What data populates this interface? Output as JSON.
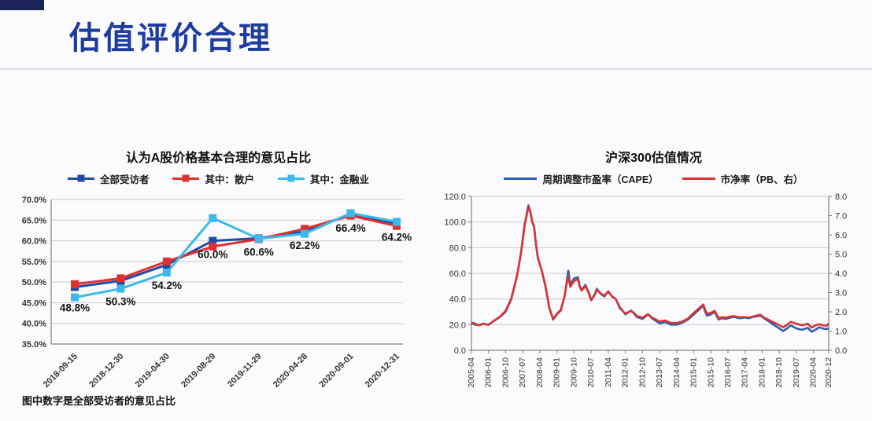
{
  "slide": {
    "title": "估值评价合理",
    "footnote": "图中数字是全部受访者的意见占比",
    "accent_color": "#1e3ca0",
    "corner_block_color": "#1b2559"
  },
  "chart_data": [
    {
      "type": "line",
      "title": "认为A股价格基本合理的意见占比",
      "legend_position": "top",
      "legend_marker": "square",
      "grid": true,
      "categories": [
        "2018-09-15",
        "2018-12-30",
        "2019-04-30",
        "2019-08-29",
        "2019-11-29",
        "2020-04-28",
        "2020-09-01",
        "2020-12-31"
      ],
      "series": [
        {
          "name": "全部受访者",
          "color": "#1f4aa8",
          "values": [
            48.8,
            50.3,
            54.2,
            60.0,
            60.6,
            62.2,
            66.4,
            64.2
          ]
        },
        {
          "name": "其中：散户",
          "color": "#e02f2f",
          "values": [
            49.5,
            50.9,
            55.0,
            58.6,
            60.4,
            62.9,
            66.1,
            63.6
          ]
        },
        {
          "name": "其中：金融业",
          "color": "#3bb9ea",
          "values": [
            46.3,
            48.4,
            52.3,
            65.5,
            60.5,
            61.7,
            66.7,
            64.6
          ]
        }
      ],
      "data_labels": [
        "48.8%",
        "50.3%",
        "54.2%",
        "60.0%",
        "60.6%",
        "62.2%",
        "66.4%",
        "64.2%"
      ],
      "ylim": [
        35,
        70
      ],
      "ytick_step": 5,
      "y_tick_labels": [
        "35.0%",
        "40.0%",
        "45.0%",
        "50.0%",
        "55.0%",
        "60.0%",
        "65.0%",
        "70.0%"
      ]
    },
    {
      "type": "line",
      "title": "沪深300估值情况",
      "legend_position": "top",
      "legend_marker": "line",
      "grid": true,
      "xlim": [
        0,
        188
      ],
      "x_tick_positions": [
        0,
        9,
        18,
        27,
        36,
        45,
        54,
        63,
        72,
        81,
        90,
        99,
        108,
        117,
        126,
        135,
        144,
        153,
        162,
        171,
        180,
        188
      ],
      "x_tick_labels": [
        "2005-04",
        "2006-01",
        "2006-10",
        "2007-07",
        "2008-04",
        "2009-01",
        "2009-10",
        "2010-07",
        "2011-04",
        "2012-01",
        "2012-10",
        "2013-07",
        "2014-04",
        "2015-01",
        "2015-10",
        "2016-07",
        "2017-04",
        "2018-01",
        "2018-10",
        "2019-07",
        "2020-04",
        "2020-12"
      ],
      "left_ylim": [
        0,
        120
      ],
      "left_step": 20,
      "left_tick_labels": [
        "0.0",
        "20.0",
        "40.0",
        "60.0",
        "80.0",
        "100.0",
        "120.0"
      ],
      "right_ylim": [
        0,
        8
      ],
      "right_step": 1,
      "right_tick_labels": [
        "0.0",
        "1.0",
        "2.0",
        "3.0",
        "4.0",
        "5.0",
        "6.0",
        "7.0",
        "8.0"
      ],
      "series": [
        {
          "name": "周期调整市盈率（CAPE）",
          "color": "#2e5fb0",
          "axis": "left",
          "points": [
            [
              0,
              21
            ],
            [
              2,
              20
            ],
            [
              4,
              19.5
            ],
            [
              6,
              20.5
            ],
            [
              9,
              20
            ],
            [
              12,
              23
            ],
            [
              15,
              26
            ],
            [
              18,
              30
            ],
            [
              21,
              40
            ],
            [
              24,
              58
            ],
            [
              26,
              75
            ],
            [
              28,
              98
            ],
            [
              30,
              113
            ],
            [
              31,
              108
            ],
            [
              32,
              100
            ],
            [
              33,
              96
            ],
            [
              34,
              82
            ],
            [
              35,
              72
            ],
            [
              37,
              62
            ],
            [
              39,
              50
            ],
            [
              41,
              33
            ],
            [
              43,
              24
            ],
            [
              45,
              28
            ],
            [
              47,
              31
            ],
            [
              49,
              42
            ],
            [
              50,
              52
            ],
            [
              51,
              62
            ],
            [
              52,
              51
            ],
            [
              54,
              56
            ],
            [
              56,
              57
            ],
            [
              57,
              50
            ],
            [
              58,
              47
            ],
            [
              60,
              51
            ],
            [
              62,
              44
            ],
            [
              63,
              39
            ],
            [
              65,
              44
            ],
            [
              66,
              48
            ],
            [
              68,
              44
            ],
            [
              70,
              42
            ],
            [
              72,
              46
            ],
            [
              74,
              42
            ],
            [
              76,
              40
            ],
            [
              78,
              33
            ],
            [
              80,
              30
            ],
            [
              81,
              28
            ],
            [
              83,
              30
            ],
            [
              84,
              31
            ],
            [
              86,
              28
            ],
            [
              87,
              26
            ],
            [
              90,
              24.5
            ],
            [
              93,
              28
            ],
            [
              95,
              25
            ],
            [
              96,
              24
            ],
            [
              99,
              21
            ],
            [
              102,
              22
            ],
            [
              105,
              20
            ],
            [
              108,
              20
            ],
            [
              111,
              21.5
            ],
            [
              114,
              24
            ],
            [
              117,
              28
            ],
            [
              120,
              32
            ],
            [
              122,
              35
            ],
            [
              123,
              30
            ],
            [
              124,
              27
            ],
            [
              126,
              28
            ],
            [
              128,
              30
            ],
            [
              130,
              24
            ],
            [
              132,
              25
            ],
            [
              134,
              24.5
            ],
            [
              136,
              25.5
            ],
            [
              138,
              26
            ],
            [
              141,
              25
            ],
            [
              144,
              25.5
            ],
            [
              146,
              25
            ],
            [
              148,
              26
            ],
            [
              152,
              27
            ],
            [
              154,
              25
            ],
            [
              156,
              23
            ],
            [
              158,
              21
            ],
            [
              160,
              19
            ],
            [
              162,
              17
            ],
            [
              164,
              15
            ],
            [
              166,
              17
            ],
            [
              168,
              19.5
            ],
            [
              171,
              17
            ],
            [
              174,
              16
            ],
            [
              177,
              17.5
            ],
            [
              179,
              14.5
            ],
            [
              181,
              16
            ],
            [
              183,
              18
            ],
            [
              185,
              17
            ],
            [
              187,
              16.5
            ],
            [
              188,
              17.5
            ]
          ]
        },
        {
          "name": "市净率（PB、右）",
          "color": "#d93432",
          "axis": "right",
          "points": [
            [
              0,
              1.45
            ],
            [
              2,
              1.38
            ],
            [
              4,
              1.3
            ],
            [
              6,
              1.38
            ],
            [
              9,
              1.32
            ],
            [
              12,
              1.55
            ],
            [
              15,
              1.75
            ],
            [
              18,
              2.05
            ],
            [
              21,
              2.7
            ],
            [
              24,
              3.9
            ],
            [
              26,
              5.0
            ],
            [
              28,
              6.5
            ],
            [
              30,
              7.45
            ],
            [
              31,
              7.2
            ],
            [
              32,
              6.7
            ],
            [
              33,
              6.4
            ],
            [
              34,
              5.5
            ],
            [
              35,
              4.8
            ],
            [
              37,
              4.15
            ],
            [
              39,
              3.3
            ],
            [
              41,
              2.2
            ],
            [
              43,
              1.62
            ],
            [
              45,
              1.9
            ],
            [
              47,
              2.1
            ],
            [
              49,
              2.8
            ],
            [
              50,
              3.4
            ],
            [
              51,
              3.85
            ],
            [
              52,
              3.3
            ],
            [
              54,
              3.6
            ],
            [
              56,
              3.7
            ],
            [
              57,
              3.3
            ],
            [
              58,
              3.1
            ],
            [
              60,
              3.35
            ],
            [
              62,
              2.9
            ],
            [
              63,
              2.6
            ],
            [
              65,
              2.9
            ],
            [
              66,
              3.15
            ],
            [
              68,
              2.95
            ],
            [
              70,
              2.85
            ],
            [
              72,
              3.05
            ],
            [
              74,
              2.8
            ],
            [
              76,
              2.65
            ],
            [
              78,
              2.25
            ],
            [
              80,
              2.0
            ],
            [
              81,
              1.92
            ],
            [
              83,
              2.0
            ],
            [
              84,
              2.05
            ],
            [
              86,
              1.9
            ],
            [
              87,
              1.78
            ],
            [
              90,
              1.7
            ],
            [
              93,
              1.88
            ],
            [
              95,
              1.7
            ],
            [
              96,
              1.65
            ],
            [
              99,
              1.5
            ],
            [
              102,
              1.55
            ],
            [
              105,
              1.42
            ],
            [
              108,
              1.42
            ],
            [
              111,
              1.5
            ],
            [
              114,
              1.65
            ],
            [
              117,
              1.95
            ],
            [
              120,
              2.2
            ],
            [
              122,
              2.38
            ],
            [
              123,
              2.1
            ],
            [
              124,
              1.9
            ],
            [
              126,
              1.95
            ],
            [
              128,
              2.05
            ],
            [
              130,
              1.68
            ],
            [
              132,
              1.72
            ],
            [
              134,
              1.7
            ],
            [
              136,
              1.75
            ],
            [
              138,
              1.78
            ],
            [
              141,
              1.72
            ],
            [
              144,
              1.72
            ],
            [
              146,
              1.7
            ],
            [
              148,
              1.75
            ],
            [
              152,
              1.85
            ],
            [
              154,
              1.7
            ],
            [
              156,
              1.6
            ],
            [
              158,
              1.5
            ],
            [
              160,
              1.4
            ],
            [
              162,
              1.3
            ],
            [
              164,
              1.2
            ],
            [
              166,
              1.32
            ],
            [
              168,
              1.48
            ],
            [
              171,
              1.38
            ],
            [
              174,
              1.3
            ],
            [
              177,
              1.38
            ],
            [
              179,
              1.18
            ],
            [
              181,
              1.3
            ],
            [
              183,
              1.35
            ],
            [
              185,
              1.3
            ],
            [
              187,
              1.28
            ],
            [
              188,
              1.4
            ]
          ]
        }
      ]
    }
  ]
}
